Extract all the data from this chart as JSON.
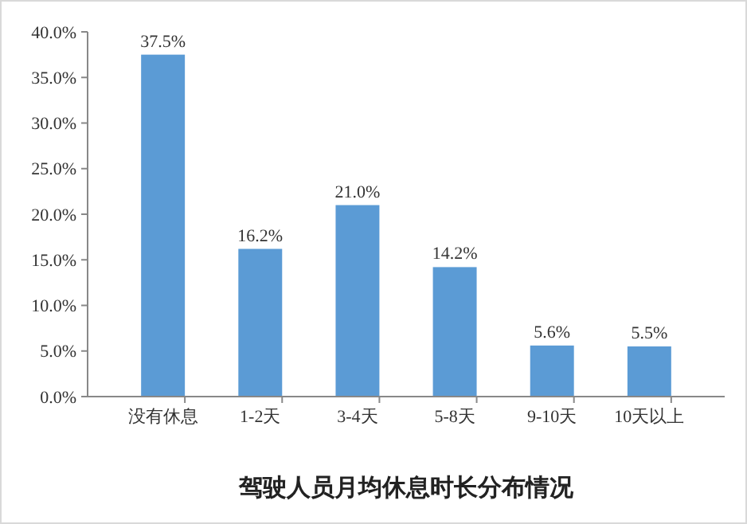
{
  "chart_data": {
    "type": "bar",
    "title": "驾驶人员月均休息时长分布情况",
    "categories": [
      "没有休息",
      "1-2天",
      "3-4天",
      "5-8天",
      "9-10天",
      "10天以上"
    ],
    "values": [
      37.5,
      16.2,
      21.0,
      14.2,
      5.6,
      5.5
    ],
    "value_labels": [
      "37.5%",
      "16.2%",
      "21.0%",
      "14.2%",
      "5.6%",
      "5.5%"
    ],
    "color": "#5b9bd5",
    "ylim": [
      0,
      40
    ],
    "yticks": [
      {
        "value": 0,
        "label": "0.0%"
      },
      {
        "value": 5,
        "label": "5.0%"
      },
      {
        "value": 10,
        "label": "10.0%"
      },
      {
        "value": 15,
        "label": "15.0%"
      },
      {
        "value": 20,
        "label": "20.0%"
      },
      {
        "value": 25,
        "label": "25.0%"
      },
      {
        "value": 30,
        "label": "30.0%"
      },
      {
        "value": 35,
        "label": "35.0%"
      },
      {
        "value": 40,
        "label": "40.0%"
      }
    ],
    "grid": false
  }
}
